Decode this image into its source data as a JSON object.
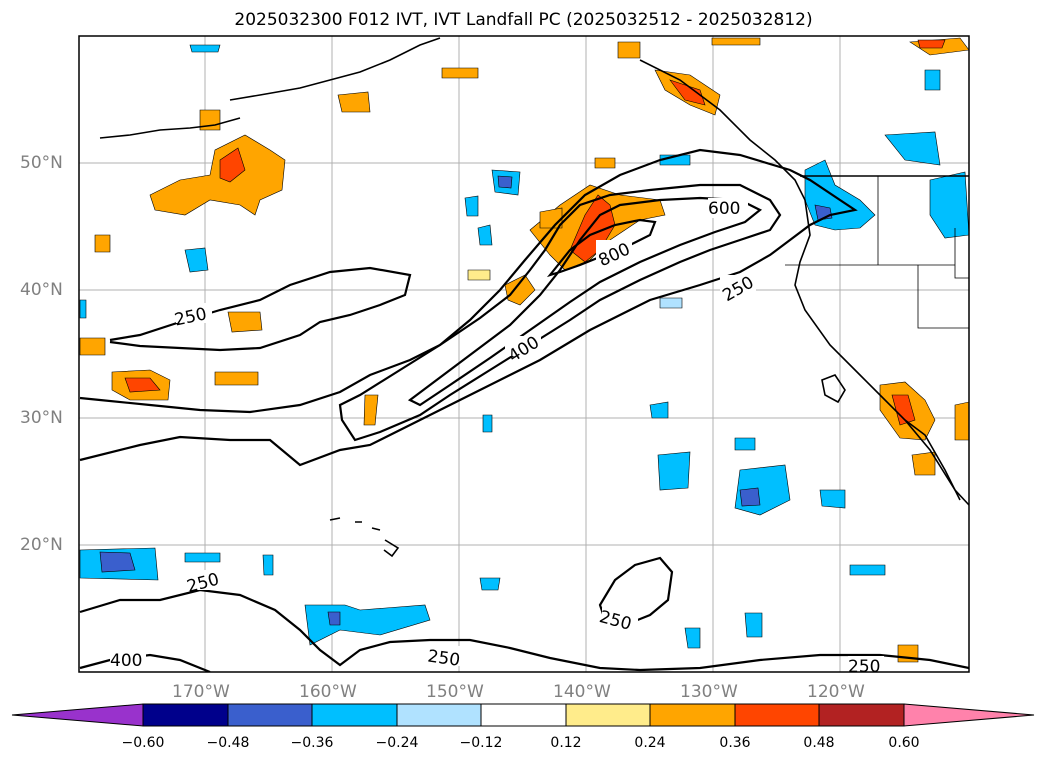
{
  "title": "2025032300 F012 IVT, IVT Landfall PC (2025032512 - 2025032812)",
  "lat_labels": [
    "50°N",
    "40°N",
    "30°N",
    "20°N"
  ],
  "lon_labels": [
    "170°W",
    "160°W",
    "150°W",
    "140°W",
    "130°W",
    "120°W"
  ],
  "contour_labels": [
    "250",
    "250",
    "250",
    "250",
    "250",
    "250",
    "250",
    "400",
    "400",
    "600",
    "800"
  ],
  "colorbar": {
    "ticks": [
      "−0.60",
      "−0.48",
      "−0.36",
      "−0.24",
      "−0.12",
      "0.12",
      "0.24",
      "0.36",
      "0.48",
      "0.60"
    ],
    "colors": [
      "#9932cc",
      "#00008b",
      "#3a5fcd",
      "#00bfff",
      "#b0e2ff",
      "#ffffff",
      "#ffec8b",
      "#ffa500",
      "#ff4500",
      "#b22222",
      "#ff82ab"
    ]
  }
}
